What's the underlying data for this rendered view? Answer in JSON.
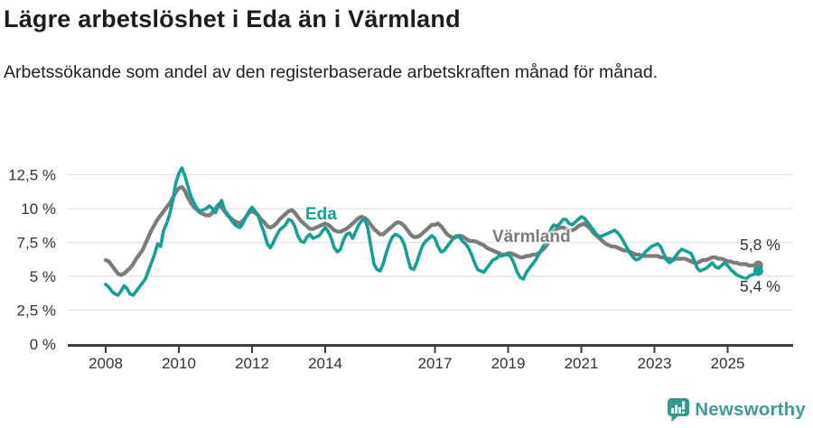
{
  "header": {
    "title": "Lägre arbetslöshet i Eda än i Värmland",
    "subtitle": "Arbetssökande som andel av den registerbaserade arbetskraften månad för månad."
  },
  "annotations": {
    "eda_label": "Eda",
    "varmland_label": "Värmland",
    "varmland_end_value": "5,8 %",
    "eda_end_value": "5,4 %"
  },
  "footer": {
    "brand": "Newsworthy"
  },
  "colors": {
    "eda": "#14A095",
    "varmland": "#7C7C7C",
    "grid": "#E2E2E2",
    "axis": "#3C3C3C",
    "tick_text": "#333333",
    "title_text": "#1D1D1B",
    "brand_teal": "#3F9C96",
    "icon_teal": "#35978F"
  },
  "chart_data": {
    "type": "line",
    "title": "Lägre arbetslöshet i Eda än i Värmland",
    "subtitle": "Arbetssökande som andel av den registerbaserade arbetskraften månad för månad.",
    "unit": "%",
    "x_unit": "month",
    "x_start": "2008-01",
    "x_end": "2025-11",
    "x_tick_years": [
      2008,
      2010,
      2012,
      2014,
      2017,
      2019,
      2021,
      2023,
      2025
    ],
    "y_ticks": [
      {
        "value": 0,
        "label": "0 %"
      },
      {
        "value": 2.5,
        "label": "2,5 %"
      },
      {
        "value": 5,
        "label": "5 %"
      },
      {
        "value": 7.5,
        "label": "7,5 %"
      },
      {
        "value": 10,
        "label": "10 %"
      },
      {
        "value": 12.5,
        "label": "12,5 %"
      }
    ],
    "ylim": [
      0,
      13.5
    ],
    "grid": "horizontal",
    "legend": "inline-labels",
    "series": [
      {
        "name": "Värmland",
        "color": "#7C7C7C",
        "stroke_width": 4.3,
        "end_value": 5.8,
        "end_label": "5,8 %",
        "values": [
          6.2,
          6.1,
          5.8,
          5.5,
          5.2,
          5.1,
          5.2,
          5.4,
          5.6,
          5.9,
          6.3,
          6.6,
          6.9,
          7.4,
          7.9,
          8.4,
          8.8,
          9.2,
          9.5,
          9.8,
          10.1,
          10.4,
          10.8,
          11.2,
          11.5,
          11.6,
          11.3,
          10.8,
          10.4,
          10.1,
          9.9,
          9.7,
          9.6,
          9.5,
          9.5,
          9.7,
          10.0,
          10.3,
          10.1,
          9.8,
          9.5,
          9.3,
          9.1,
          9.0,
          8.9,
          9.1,
          9.4,
          9.7,
          9.8,
          9.7,
          9.5,
          9.2,
          9.0,
          8.7,
          8.6,
          8.7,
          8.9,
          9.2,
          9.4,
          9.6,
          9.8,
          9.9,
          9.7,
          9.4,
          9.1,
          8.9,
          8.7,
          8.5,
          8.5,
          8.6,
          8.7,
          8.8,
          8.9,
          8.8,
          8.6,
          8.4,
          8.3,
          8.3,
          8.4,
          8.5,
          8.7,
          8.9,
          9.1,
          9.3,
          9.4,
          9.3,
          9.1,
          8.8,
          8.5,
          8.3,
          8.1,
          8.1,
          8.3,
          8.5,
          8.7,
          8.9,
          9.0,
          8.9,
          8.7,
          8.4,
          8.1,
          7.9,
          7.9,
          8.0,
          8.2,
          8.4,
          8.6,
          8.8,
          8.8,
          8.9,
          8.7,
          8.4,
          8.1,
          7.95,
          7.85,
          7.9,
          8.0,
          7.95,
          7.8,
          7.65,
          7.6,
          7.6,
          7.5,
          7.4,
          7.3,
          7.1,
          7.0,
          6.9,
          6.8,
          6.7,
          6.6,
          6.6,
          6.7,
          6.7,
          6.6,
          6.5,
          6.4,
          6.4,
          6.5,
          6.5,
          6.6,
          6.6,
          6.7,
          6.9,
          7.1,
          7.4,
          7.9,
          8.3,
          8.5,
          8.6,
          8.6,
          8.5,
          8.4,
          8.4,
          8.5,
          8.7,
          8.8,
          8.9,
          8.7,
          8.5,
          8.2,
          8.0,
          7.8,
          7.6,
          7.4,
          7.3,
          7.2,
          7.2,
          7.1,
          7.0,
          6.9,
          6.9,
          6.8,
          6.7,
          6.6,
          6.6,
          6.5,
          6.5,
          6.5,
          6.5,
          6.5,
          6.5,
          6.4,
          6.4,
          6.3,
          6.3,
          6.2,
          6.3,
          6.3,
          6.3,
          6.3,
          6.2,
          6.1,
          6.0,
          6.0,
          6.1,
          6.2,
          6.2,
          6.3,
          6.4,
          6.4,
          6.3,
          6.3,
          6.2,
          6.1,
          6.1,
          6.0,
          6.0,
          5.9,
          5.9,
          5.9,
          5.8,
          5.8,
          5.8,
          5.8
        ]
      },
      {
        "name": "Eda",
        "color": "#14A095",
        "stroke_width": 3.6,
        "end_value": 5.4,
        "end_label": "5,4 %",
        "values": [
          4.4,
          4.2,
          3.9,
          3.7,
          3.6,
          3.9,
          4.3,
          4.1,
          3.7,
          3.6,
          3.9,
          4.2,
          4.5,
          4.8,
          5.4,
          6.0,
          6.6,
          7.4,
          7.2,
          8.4,
          8.9,
          9.6,
          10.6,
          11.9,
          12.6,
          13.0,
          12.4,
          11.6,
          10.9,
          10.4,
          10.0,
          9.8,
          9.9,
          10.0,
          10.2,
          10.0,
          9.7,
          10.2,
          10.6,
          9.9,
          9.6,
          9.2,
          8.9,
          8.7,
          8.6,
          8.9,
          9.4,
          9.8,
          10.1,
          9.8,
          9.5,
          8.8,
          8.2,
          7.4,
          7.1,
          7.5,
          8.0,
          8.4,
          8.6,
          8.8,
          9.2,
          9.1,
          8.7,
          8.0,
          7.6,
          7.5,
          7.9,
          8.1,
          7.8,
          7.9,
          8.0,
          8.3,
          8.6,
          8.3,
          7.8,
          7.1,
          6.8,
          7.0,
          7.7,
          8.1,
          8.2,
          7.8,
          8.3,
          8.8,
          9.1,
          9.2,
          8.5,
          7.2,
          5.9,
          5.5,
          5.4,
          5.9,
          6.7,
          7.4,
          7.9,
          8.1,
          8.0,
          7.8,
          7.3,
          6.4,
          5.6,
          5.5,
          6.0,
          6.7,
          7.3,
          7.6,
          7.8,
          8.0,
          7.8,
          7.2,
          6.8,
          6.9,
          7.2,
          7.5,
          7.8,
          8.0,
          7.9,
          7.6,
          7.4,
          7.1,
          6.6,
          6.0,
          5.5,
          5.4,
          5.3,
          5.6,
          5.9,
          6.2,
          6.3,
          6.5,
          6.5,
          6.6,
          6.6,
          6.4,
          5.9,
          5.3,
          4.9,
          4.8,
          5.3,
          5.6,
          5.9,
          6.2,
          6.6,
          7.0,
          7.4,
          7.9,
          8.5,
          8.8,
          8.7,
          8.9,
          9.2,
          9.2,
          8.9,
          8.8,
          9.0,
          9.2,
          9.4,
          9.3,
          9.0,
          8.7,
          8.4,
          8.1,
          7.9,
          8.0,
          8.1,
          8.2,
          8.3,
          8.4,
          8.2,
          7.9,
          7.5,
          7.1,
          6.7,
          6.4,
          6.2,
          6.3,
          6.5,
          6.8,
          7.0,
          7.2,
          7.3,
          7.4,
          7.2,
          6.7,
          6.2,
          6.0,
          6.2,
          6.5,
          6.8,
          7.0,
          6.9,
          6.8,
          6.7,
          6.2,
          5.6,
          5.4,
          5.5,
          5.6,
          5.8,
          6.0,
          5.7,
          5.6,
          5.8,
          6.0,
          5.8,
          5.5,
          5.3,
          5.1,
          5.0,
          4.9,
          4.8,
          5.0,
          5.1,
          5.2,
          5.4
        ]
      }
    ]
  }
}
